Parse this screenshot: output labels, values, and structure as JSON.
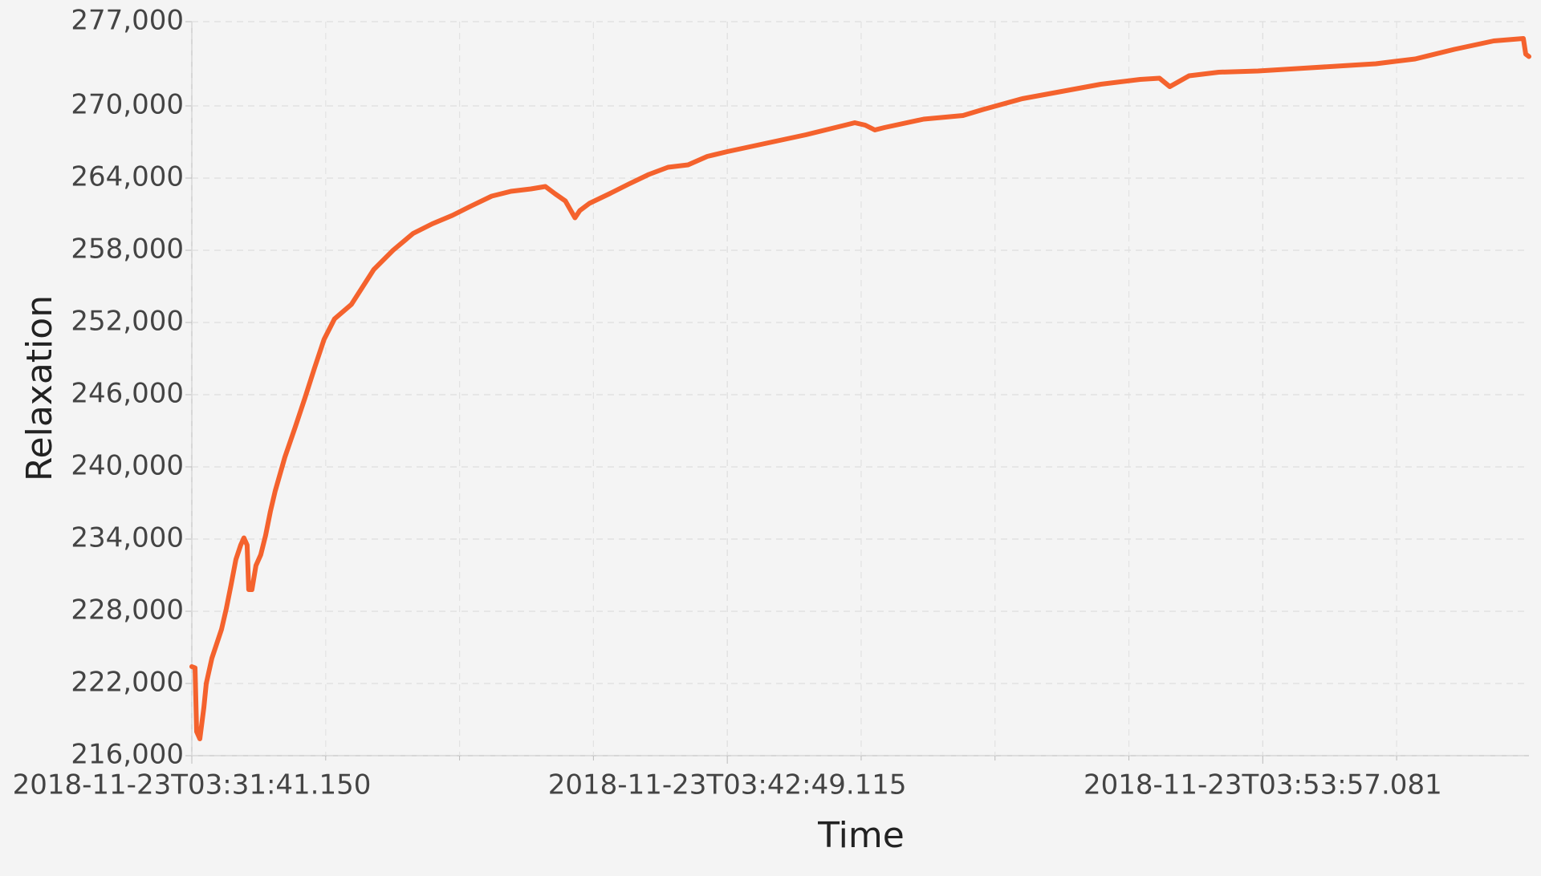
{
  "chart_data": {
    "type": "line",
    "x_label": "Time",
    "y_label": "Relaxation",
    "xlim": [
      "2018-11-23T03:31:41.150",
      "2018-11-23T03:59:29.150"
    ],
    "xticks": [
      "2018-11-23T03:31:41.150",
      "2018-11-23T03:42:49.115",
      "2018-11-23T03:53:57.081"
    ],
    "ylim": [
      216000,
      277000
    ],
    "yticks": [
      {
        "value": 216000,
        "label": "216,000"
      },
      {
        "value": 222000,
        "label": "222,000"
      },
      {
        "value": 228000,
        "label": "228,000"
      },
      {
        "value": 234000,
        "label": "234,000"
      },
      {
        "value": 240000,
        "label": "240,000"
      },
      {
        "value": 246000,
        "label": "246,000"
      },
      {
        "value": 252000,
        "label": "252,000"
      },
      {
        "value": 258000,
        "label": "258,000"
      },
      {
        "value": 264000,
        "label": "264,000"
      },
      {
        "value": 270000,
        "label": "270,000"
      },
      {
        "value": 277000,
        "label": "277,000"
      }
    ],
    "grid": true,
    "x": [
      "2018-11-23T03:31:41.150",
      "2018-11-23T03:31:45.150",
      "2018-11-23T03:31:47.150",
      "2018-11-23T03:31:51.150",
      "2018-11-23T03:31:56.150",
      "2018-11-23T03:31:59.150",
      "2018-11-23T03:32:06.150",
      "2018-11-23T03:32:12.150",
      "2018-11-23T03:32:18.150",
      "2018-11-23T03:32:24.150",
      "2018-11-23T03:32:30.150",
      "2018-11-23T03:32:36.150",
      "2018-11-23T03:32:42.150",
      "2018-11-23T03:32:46.150",
      "2018-11-23T03:32:50.150",
      "2018-11-23T03:32:52.150",
      "2018-11-23T03:32:56.150",
      "2018-11-23T03:33:01.150",
      "2018-11-23T03:33:07.150",
      "2018-11-23T03:33:13.150",
      "2018-11-23T03:33:19.150",
      "2018-11-23T03:33:25.150",
      "2018-11-23T03:33:37.150",
      "2018-11-23T03:33:50.150",
      "2018-11-23T03:34:02.150",
      "2018-11-23T03:34:14.150",
      "2018-11-23T03:34:26.150",
      "2018-11-23T03:34:39.150",
      "2018-11-23T03:35:00.150",
      "2018-11-23T03:35:28.150",
      "2018-11-23T03:35:52.150",
      "2018-11-23T03:36:17.150",
      "2018-11-23T03:36:41.150",
      "2018-11-23T03:37:06.150",
      "2018-11-23T03:37:30.150",
      "2018-11-23T03:37:55.150",
      "2018-11-23T03:38:19.150",
      "2018-11-23T03:38:44.150",
      "2018-11-23T03:39:02.150",
      "2018-11-23T03:39:14.150",
      "2018-11-23T03:39:27.150",
      "2018-11-23T03:39:39.150",
      "2018-11-23T03:39:45.150",
      "2018-11-23T03:39:57.150",
      "2018-11-23T03:40:22.150",
      "2018-11-23T03:40:46.150",
      "2018-11-23T03:41:11.150",
      "2018-11-23T03:41:35.150",
      "2018-11-23T03:42:00.150",
      "2018-11-23T03:42:24.150",
      "2018-11-23T03:42:49.150",
      "2018-11-23T03:43:38.150",
      "2018-11-23T03:44:27.150",
      "2018-11-23T03:45:16.150",
      "2018-11-23T03:45:28.150",
      "2018-11-23T03:45:41.150",
      "2018-11-23T03:45:53.150",
      "2018-11-23T03:46:05.150",
      "2018-11-23T03:46:54.150",
      "2018-11-23T03:47:43.150",
      "2018-11-23T03:48:08.150",
      "2018-11-23T03:48:57.150",
      "2018-11-23T03:49:46.150",
      "2018-11-23T03:50:35.150",
      "2018-11-23T03:51:24.150",
      "2018-11-23T03:51:48.150",
      "2018-11-23T03:52:01.150",
      "2018-11-23T03:52:25.150",
      "2018-11-23T03:53:02.150",
      "2018-11-23T03:53:51.150",
      "2018-11-23T03:54:40.150",
      "2018-11-23T03:55:29.150",
      "2018-11-23T03:55:53.150",
      "2018-11-23T03:56:18.150",
      "2018-11-23T03:56:42.150",
      "2018-11-23T03:57:07.150",
      "2018-11-23T03:57:56.150",
      "2018-11-23T03:58:45.150",
      "2018-11-23T03:59:22.150",
      "2018-11-23T03:59:25.150",
      "2018-11-23T03:59:29.150"
    ],
    "series": [
      {
        "color": "#f4622d",
        "values": [
          223400,
          223300,
          218000,
          217400,
          220000,
          222000,
          224100,
          225300,
          226500,
          228200,
          230200,
          232300,
          233500,
          234100,
          233500,
          229800,
          229800,
          231800,
          232700,
          234300,
          236300,
          238000,
          240800,
          243300,
          245700,
          248200,
          250600,
          252300,
          253500,
          256400,
          258000,
          259400,
          260200,
          260900,
          261700,
          262500,
          262900,
          263100,
          263300,
          262700,
          262100,
          260700,
          261300,
          261900,
          262700,
          263500,
          264300,
          264900,
          265100,
          265800,
          266200,
          266900,
          267600,
          268400,
          268600,
          268400,
          268000,
          268200,
          268900,
          269200,
          269700,
          270600,
          271200,
          271800,
          272200,
          272300,
          271600,
          272500,
          272800,
          272900,
          273100,
          273300,
          273400,
          273500,
          273700,
          273900,
          274700,
          275400,
          275600,
          274300,
          274100
        ]
      }
    ]
  }
}
